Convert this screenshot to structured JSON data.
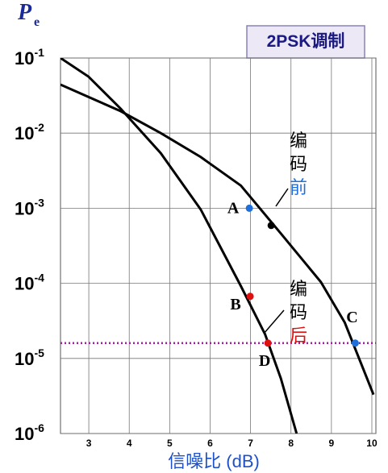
{
  "chart_data": {
    "type": "line",
    "title": "2PSK调制",
    "y_label": "P",
    "y_label_sub": "e",
    "x_label": "信噪比 (dB)",
    "log_y": true,
    "grid": true,
    "xlim": [
      2.3,
      10.1
    ],
    "xticks": [
      3,
      4,
      5,
      6,
      7,
      8,
      9,
      10
    ],
    "ylim": [
      1e-06,
      0.1
    ],
    "yticks": [
      {
        "value": 0.1,
        "label": "10-1"
      },
      {
        "value": 0.01,
        "label": "10-2"
      },
      {
        "value": 0.001,
        "label": "10-3"
      },
      {
        "value": 0.0001,
        "label": "10-4"
      },
      {
        "value": 1e-05,
        "label": "10-5"
      },
      {
        "value": 1e-06,
        "label": "10-6"
      }
    ],
    "series": [
      {
        "name": "编码后",
        "color": "#000000",
        "label_color": "#e01010",
        "x": [
          2.3,
          2.99,
          3.79,
          4.78,
          5.77,
          6.76,
          7.36,
          7.75,
          8.14
        ],
        "values": [
          0.1,
          0.0567,
          0.0211,
          0.0054,
          0.00096,
          9.2e-05,
          2.1e-05,
          5.4e-06,
          1e-06
        ]
      },
      {
        "name": "编码前",
        "color": "#000000",
        "label_color": "#1e6fdc",
        "x": [
          2.3,
          3.79,
          4.78,
          5.77,
          6.76,
          7.75,
          8.74,
          9.33,
          10.04
        ],
        "values": [
          0.0443,
          0.0196,
          0.01,
          0.0048,
          0.002,
          0.00046,
          0.000104,
          3e-05,
          3.3e-06
        ]
      }
    ],
    "points": [
      {
        "label": "A",
        "x": 6.97,
        "y": 0.001,
        "color": "#1e6fdc"
      },
      {
        "x": 7.51,
        "y": 0.00059,
        "color": "#000000"
      },
      {
        "label": "B",
        "x": 6.99,
        "y": 6.7e-05,
        "color": "#e01010"
      },
      {
        "label": "D",
        "x": 7.43,
        "y": 1.6e-05,
        "color": "#e01010"
      },
      {
        "label": "C",
        "x": 9.59,
        "y": 1.6e-05,
        "color": "#1e6fdc"
      }
    ],
    "reference_line": {
      "y": 1.6e-05,
      "color": "#a020a0"
    }
  }
}
